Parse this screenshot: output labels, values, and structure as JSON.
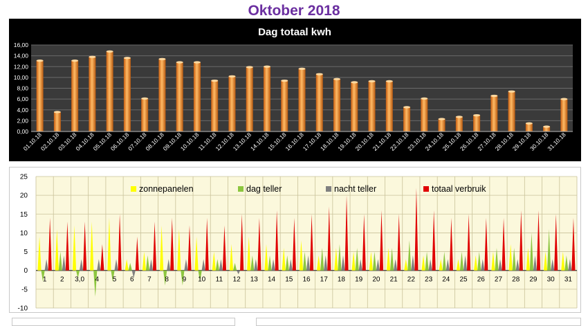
{
  "page": {
    "title": "Oktober 2018"
  },
  "chart_data": [
    {
      "type": "bar",
      "title": "Dag totaal kwh",
      "categories": [
        "01.10.18",
        "02.10.18",
        "03.10.18",
        "04.10.18",
        "05.10.18",
        "06.10.18",
        "07.10.18",
        "08.10.18",
        "09.10.18",
        "10.10.18",
        "11.10.18",
        "12.10.18",
        "13.10.18",
        "14.10.18",
        "15.10.18",
        "16.10.18",
        "17.10.18",
        "18.10.18",
        "19.10.18",
        "20.10.18",
        "21.10.18",
        "22.10.18",
        "23.10.18",
        "24.10.18",
        "25.10.18",
        "26.10.18",
        "27.10.18",
        "28.10.18",
        "29.10.18",
        "30.10.18",
        "31.10.18"
      ],
      "values": [
        13.1,
        3.6,
        13.1,
        13.8,
        14.8,
        13.6,
        6.1,
        13.4,
        12.8,
        12.8,
        9.4,
        10.2,
        11.9,
        12.0,
        9.4,
        11.6,
        10.6,
        9.7,
        9.1,
        9.3,
        9.3,
        4.5,
        6.1,
        2.3,
        2.7,
        3.0,
        6.6,
        7.4,
        1.5,
        0.9,
        6.0
      ],
      "ylim": [
        0,
        16
      ],
      "yticks": [
        "0,00",
        "2,00",
        "4,00",
        "6,00",
        "8,00",
        "10,00",
        "12,00",
        "14,00",
        "16,00"
      ],
      "ytick_values": [
        0,
        2,
        4,
        6,
        8,
        10,
        12,
        14,
        16
      ],
      "grid": true,
      "colors": {
        "background": "#000000",
        "plot": "#3a3a3a",
        "bar": "#f08a24",
        "bar_light": "#ffbb66",
        "text": "#ffffff",
        "grid": "#6a6a6a"
      }
    },
    {
      "type": "bar",
      "title": "",
      "legend_position": "top",
      "ylim": [
        -10,
        25
      ],
      "yticks": [
        "-10",
        "-5",
        "0",
        "5",
        "10",
        "15",
        "20",
        "25"
      ],
      "ytick_values": [
        -10,
        -5,
        0,
        5,
        10,
        15,
        20,
        25
      ],
      "categories": [
        "1",
        "2",
        "3,0",
        "4",
        "5",
        "6",
        "7",
        "8",
        "9",
        "10",
        "11",
        "12",
        "13",
        "14",
        "15",
        "16",
        "17",
        "18",
        "19",
        "20",
        "21",
        "22",
        "23",
        "24",
        "25",
        "26",
        "27",
        "28",
        "29",
        "30",
        "31"
      ],
      "series": [
        {
          "name": "zonnepanelen",
          "color": "#ffff00",
          "values": [
            9,
            11,
            12,
            13,
            14,
            3,
            5,
            12,
            11,
            9,
            5,
            7,
            9,
            7,
            6,
            8,
            4,
            6,
            5,
            5,
            6,
            3,
            4,
            3,
            3,
            4,
            5,
            7,
            6,
            5,
            5
          ]
        },
        {
          "name": "dag teller",
          "color": "#8cc63f",
          "values": [
            -3,
            5,
            -2,
            -7,
            -3,
            2,
            4,
            -4,
            -4,
            -3,
            3,
            2,
            4,
            4,
            4,
            5,
            6,
            7,
            6,
            5,
            6,
            8,
            5,
            5,
            5,
            5,
            6,
            6,
            10,
            11,
            4
          ]
        },
        {
          "name": "nacht teller",
          "color": "#808080",
          "values": [
            3,
            4,
            3,
            3,
            3,
            -2,
            3,
            3,
            3,
            3,
            3,
            -1,
            3,
            3,
            3,
            4,
            4,
            4,
            3,
            3,
            3,
            4,
            3,
            3,
            4,
            3,
            3,
            3,
            4,
            3,
            3
          ]
        },
        {
          "name": "totaal verbruik",
          "color": "#e00000",
          "values": [
            14,
            13,
            13,
            7,
            15,
            9,
            13,
            14,
            12,
            14,
            12,
            15,
            14,
            16,
            14,
            15,
            17,
            20,
            15,
            16,
            15,
            22,
            16,
            14,
            15,
            14,
            14,
            16,
            16,
            15,
            14
          ]
        }
      ],
      "grid": true,
      "colors": {
        "plot": "#fbf8dc",
        "grid": "#c9c29a",
        "axis_text": "#000000"
      }
    }
  ]
}
